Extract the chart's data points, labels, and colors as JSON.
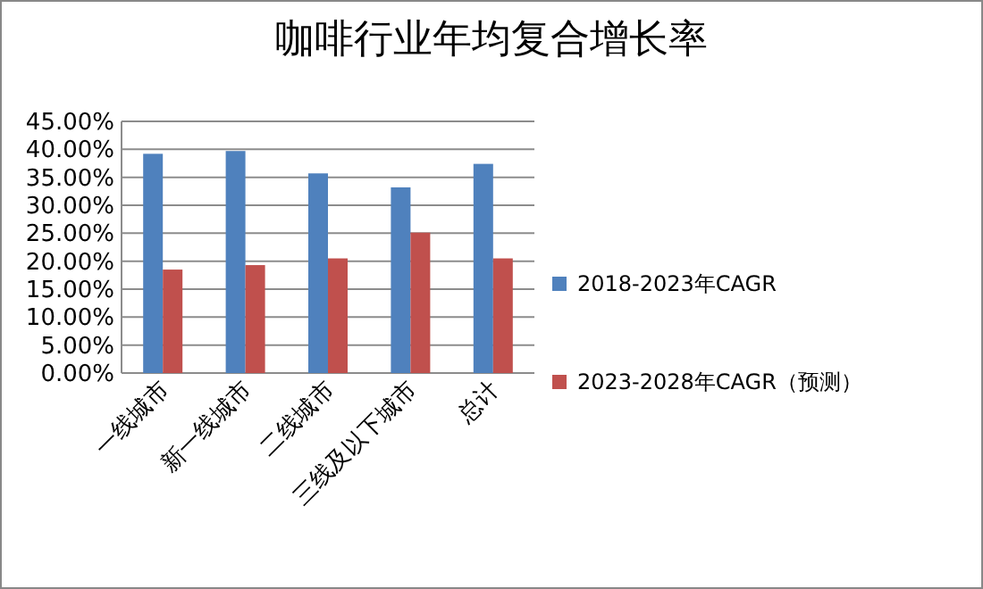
{
  "chart_data": {
    "type": "bar",
    "title": "咖啡行业年均复合增长率",
    "categories": [
      "一线城市",
      "新一线城市",
      "二线城市",
      "三线及以下城市",
      "总计"
    ],
    "series": [
      {
        "name": "2018-2023年CAGR",
        "color": "#4f81bd",
        "values": [
          39.2,
          39.7,
          35.7,
          33.2,
          37.4
        ]
      },
      {
        "name": "2023-2028年CAGR（预测）",
        "color": "#c0504d",
        "values": [
          18.5,
          19.3,
          20.5,
          25.1,
          20.5
        ]
      }
    ],
    "ylim": [
      0,
      45
    ],
    "yticks": [
      {
        "value": 0,
        "label": "0.00%"
      },
      {
        "value": 5,
        "label": "5.00%"
      },
      {
        "value": 10,
        "label": "10.00%"
      },
      {
        "value": 15,
        "label": "15.00%"
      },
      {
        "value": 20,
        "label": "20.00%"
      },
      {
        "value": 25,
        "label": "25.00%"
      },
      {
        "value": 30,
        "label": "30.00%"
      },
      {
        "value": 35,
        "label": "35.00%"
      },
      {
        "value": 40,
        "label": "40.00%"
      },
      {
        "value": 45,
        "label": "45.00%"
      }
    ],
    "grid": "y",
    "legend": "right"
  }
}
